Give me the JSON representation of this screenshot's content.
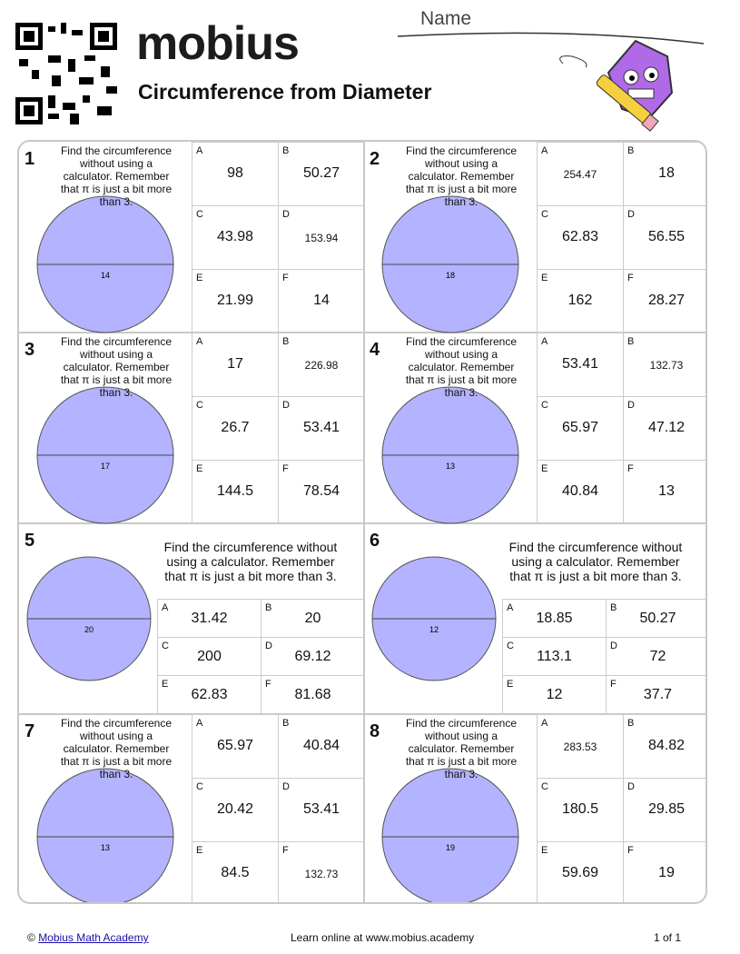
{
  "header": {
    "brand": "mobius",
    "title": "Circumference from Diameter",
    "name_label": "Name"
  },
  "problems": [
    {
      "number": 1,
      "prompt": "Find the circumference without using a calculator. Remember that π is just a bit more than 3.",
      "diameter": 14,
      "options": [
        {
          "letter": "A",
          "value": 98
        },
        {
          "letter": "B",
          "value": 50.27
        },
        {
          "letter": "C",
          "value": 43.98
        },
        {
          "letter": "D",
          "value": 153.94
        },
        {
          "letter": "E",
          "value": 21.99
        },
        {
          "letter": "F",
          "value": 14
        }
      ]
    },
    {
      "number": 2,
      "prompt": "Find the circumference without using a calculator. Remember that π is just a bit more than 3.",
      "diameter": 18,
      "options": [
        {
          "letter": "A",
          "value": 254.47
        },
        {
          "letter": "B",
          "value": 18
        },
        {
          "letter": "C",
          "value": 62.83
        },
        {
          "letter": "D",
          "value": 56.55
        },
        {
          "letter": "E",
          "value": 162
        },
        {
          "letter": "F",
          "value": 28.27
        }
      ]
    },
    {
      "number": 3,
      "prompt": "Find the circumference without using a calculator. Remember that π is just a bit more than 3.",
      "diameter": 17,
      "options": [
        {
          "letter": "A",
          "value": 17
        },
        {
          "letter": "B",
          "value": 226.98
        },
        {
          "letter": "C",
          "value": 26.7
        },
        {
          "letter": "D",
          "value": 53.41
        },
        {
          "letter": "E",
          "value": 144.5
        },
        {
          "letter": "F",
          "value": 78.54
        }
      ]
    },
    {
      "number": 4,
      "prompt": "Find the circumference without using a calculator. Remember that π is just a bit more than 3.",
      "diameter": 13,
      "options": [
        {
          "letter": "A",
          "value": 53.41
        },
        {
          "letter": "B",
          "value": 132.73
        },
        {
          "letter": "C",
          "value": 65.97
        },
        {
          "letter": "D",
          "value": 47.12
        },
        {
          "letter": "E",
          "value": 40.84
        },
        {
          "letter": "F",
          "value": 13
        }
      ]
    },
    {
      "number": 5,
      "prompt": "Find the circumference without using a calculator. Remember that π is just a bit more than 3.",
      "diameter": 20,
      "options": [
        {
          "letter": "A",
          "value": 31.42
        },
        {
          "letter": "B",
          "value": 20
        },
        {
          "letter": "C",
          "value": 200
        },
        {
          "letter": "D",
          "value": 69.12
        },
        {
          "letter": "E",
          "value": 62.83
        },
        {
          "letter": "F",
          "value": 81.68
        }
      ]
    },
    {
      "number": 6,
      "prompt": "Find the circumference without using a calculator. Remember that π is just a bit more than 3.",
      "diameter": 12,
      "options": [
        {
          "letter": "A",
          "value": 18.85
        },
        {
          "letter": "B",
          "value": 50.27
        },
        {
          "letter": "C",
          "value": 113.1
        },
        {
          "letter": "D",
          "value": 72
        },
        {
          "letter": "E",
          "value": 12
        },
        {
          "letter": "F",
          "value": 37.7
        }
      ]
    },
    {
      "number": 7,
      "prompt": "Find the circumference without using a calculator. Remember that π is just a bit more than 3.",
      "diameter": 13,
      "options": [
        {
          "letter": "A",
          "value": 65.97
        },
        {
          "letter": "B",
          "value": 40.84
        },
        {
          "letter": "C",
          "value": 20.42
        },
        {
          "letter": "D",
          "value": 53.41
        },
        {
          "letter": "E",
          "value": 84.5
        },
        {
          "letter": "F",
          "value": 132.73
        }
      ]
    },
    {
      "number": 8,
      "prompt": "Find the circumference without using a calculator. Remember that π is just a bit more than 3.",
      "diameter": 19,
      "options": [
        {
          "letter": "A",
          "value": 283.53
        },
        {
          "letter": "B",
          "value": 84.82
        },
        {
          "letter": "C",
          "value": 180.5
        },
        {
          "letter": "D",
          "value": 29.85
        },
        {
          "letter": "E",
          "value": 59.69
        },
        {
          "letter": "F",
          "value": 19
        }
      ]
    }
  ],
  "footer": {
    "copyright": "©",
    "link": "Mobius Math Academy",
    "center": "Learn online at www.mobius.academy",
    "page": "1 of 1"
  }
}
